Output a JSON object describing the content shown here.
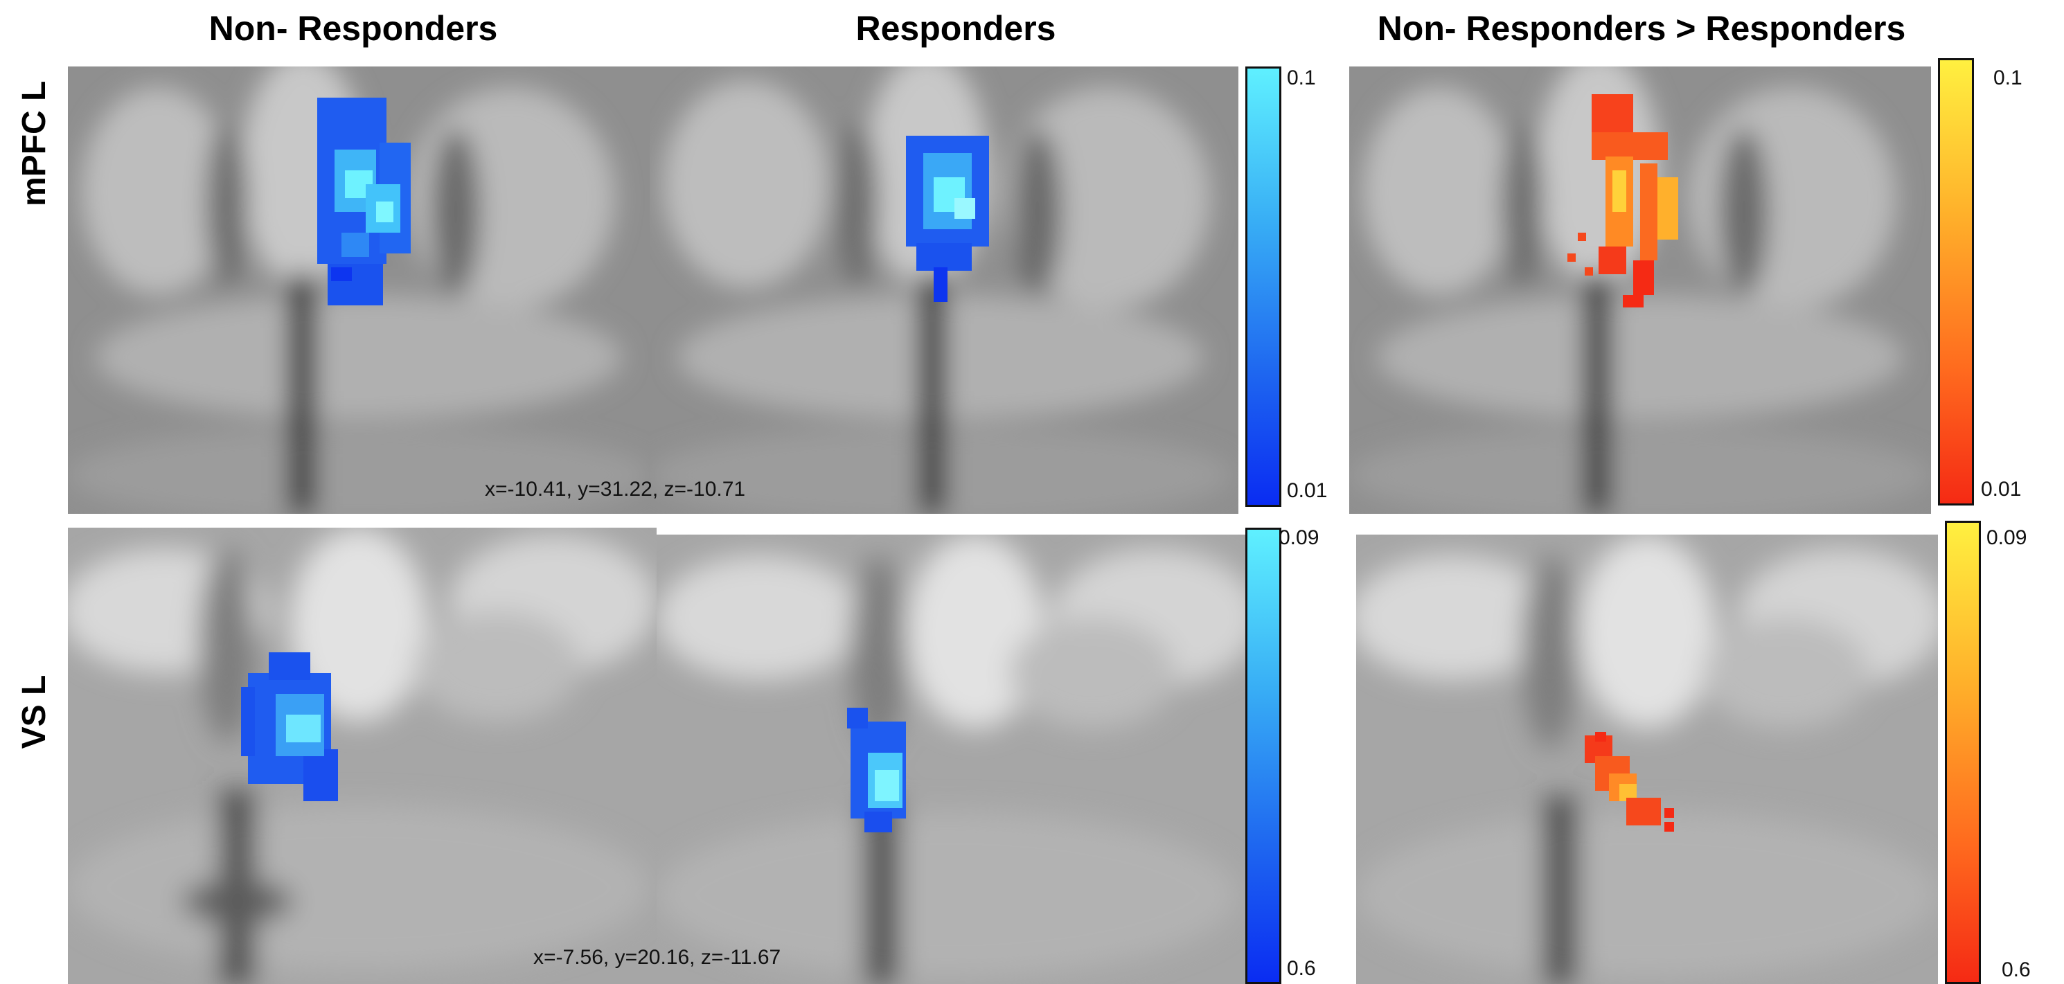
{
  "columns": {
    "non_responders": "Non- Responders",
    "responders": "Responders",
    "contrast": "Non- Responders > Responders"
  },
  "rows": {
    "mpfc": "mPFC L",
    "vs": "VS L"
  },
  "coordinates": {
    "mpfc": "x=-10.41, y=31.22, z=-10.71",
    "vs": "x=-7.56, y=20.16, z=-11.67"
  },
  "colorbars": {
    "mpfc_blue": {
      "max": "0.1",
      "min": "0.01"
    },
    "mpfc_hot": {
      "max": "0.1",
      "min": "0.01"
    },
    "vs_blue": {
      "max": "0.09",
      "min": "0.6"
    },
    "vs_hot": {
      "max": "0.09",
      "min": "0.6"
    }
  },
  "colors": {
    "blue_low": "#0a2cf2",
    "blue_high": "#5ff0ff",
    "hot_low": "#f52a14",
    "hot_high": "#fff040"
  }
}
